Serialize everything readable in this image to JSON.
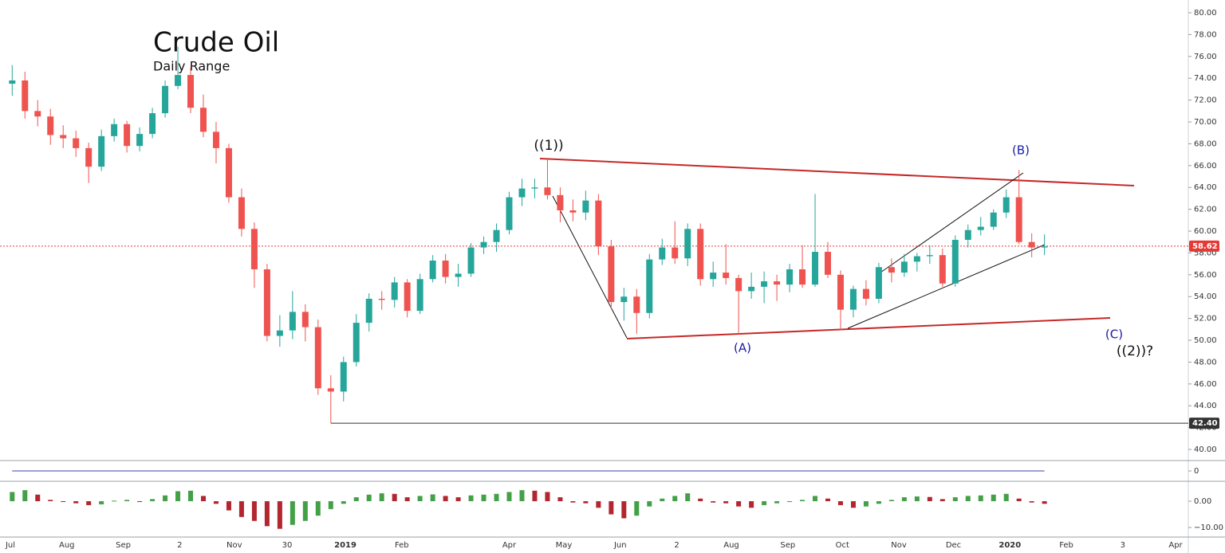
{
  "chart_data": [
    {
      "type": "candlestick",
      "title": "Crude Oil",
      "subtitle": "Daily Range",
      "x": [
        1,
        8,
        15,
        22,
        29,
        36,
        43,
        50,
        57,
        64,
        71,
        78,
        85,
        92,
        99,
        106,
        113,
        120,
        127,
        134,
        141,
        148,
        155,
        162,
        169,
        176,
        183,
        190,
        197,
        204,
        211,
        218,
        225,
        232,
        239,
        246,
        253,
        260,
        267,
        274,
        281,
        288,
        295,
        302,
        309,
        316,
        323,
        330,
        337,
        344,
        351,
        358,
        365,
        372,
        379,
        386,
        393,
        400,
        407,
        414,
        421,
        428,
        435,
        442,
        449,
        456,
        463,
        470,
        477,
        484,
        491,
        498,
        505,
        512,
        519,
        526,
        533,
        540,
        547,
        554,
        561,
        568
      ],
      "open": [
        73.5,
        73.8,
        71.0,
        70.5,
        68.8,
        68.5,
        67.6,
        65.9,
        68.7,
        69.8,
        67.8,
        68.9,
        70.8,
        73.3,
        74.3,
        71.3,
        69.1,
        67.6,
        63.1,
        60.2,
        56.5,
        50.4,
        50.9,
        52.6,
        51.2,
        45.6,
        45.3,
        48.0,
        51.6,
        53.8,
        53.7,
        55.3,
        52.7,
        55.6,
        57.3,
        55.8,
        56.1,
        58.5,
        59.0,
        60.1,
        63.1,
        63.9,
        64.0,
        63.3,
        61.9,
        61.7,
        62.8,
        58.6,
        53.5,
        54.0,
        52.5,
        57.4,
        58.5,
        57.5,
        60.2,
        55.6,
        56.2,
        55.7,
        54.5,
        54.9,
        55.4,
        55.1,
        56.5,
        55.1,
        58.1,
        56.0,
        52.8,
        54.7,
        53.8,
        56.7,
        56.2,
        57.2,
        57.7,
        57.8,
        55.2,
        59.2,
        60.1,
        60.4,
        61.7,
        63.1,
        59.0,
        58.5
      ],
      "high": [
        75.2,
        74.6,
        72.0,
        71.2,
        69.7,
        69.2,
        68.1,
        69.3,
        70.3,
        70.1,
        69.5,
        71.3,
        73.8,
        76.9,
        75.0,
        72.5,
        70.0,
        68.0,
        63.9,
        60.8,
        57.0,
        52.3,
        54.5,
        53.3,
        51.9,
        46.8,
        48.5,
        52.4,
        54.3,
        54.5,
        55.8,
        55.6,
        56.1,
        57.8,
        57.9,
        57.0,
        58.9,
        59.5,
        60.7,
        63.6,
        64.8,
        64.8,
        66.6,
        64.0,
        62.9,
        63.7,
        63.4,
        59.2,
        54.8,
        54.7,
        57.9,
        59.3,
        60.9,
        60.7,
        60.7,
        57.2,
        58.8,
        56.0,
        56.2,
        56.3,
        56.0,
        57.0,
        58.7,
        63.4,
        59.0,
        56.4,
        55.0,
        55.5,
        57.1,
        57.5,
        57.9,
        58.0,
        58.7,
        58.4,
        59.6,
        60.6,
        61.3,
        62.0,
        63.8,
        65.6,
        59.8,
        59.7
      ],
      "low": [
        72.4,
        70.3,
        69.6,
        67.9,
        67.6,
        66.8,
        64.4,
        65.5,
        68.2,
        67.2,
        67.3,
        68.5,
        70.4,
        73.0,
        70.8,
        68.6,
        66.2,
        62.6,
        59.5,
        54.8,
        49.9,
        49.4,
        50.1,
        49.9,
        45.0,
        42.4,
        44.4,
        47.6,
        50.8,
        52.8,
        53.0,
        52.1,
        52.4,
        55.3,
        55.2,
        54.9,
        55.8,
        57.9,
        58.1,
        59.7,
        62.3,
        63.0,
        62.9,
        60.8,
        60.9,
        61.0,
        57.8,
        52.9,
        51.8,
        50.6,
        52.0,
        56.9,
        57.0,
        56.8,
        55.0,
        54.9,
        55.1,
        50.5,
        53.8,
        53.4,
        53.6,
        54.4,
        54.8,
        54.9,
        55.7,
        50.9,
        52.1,
        53.2,
        53.4,
        55.3,
        55.8,
        56.3,
        57.0,
        54.9,
        54.9,
        58.5,
        59.6,
        60.1,
        61.2,
        58.8,
        57.6,
        57.8
      ],
      "close": [
        73.8,
        71.0,
        70.5,
        68.8,
        68.5,
        67.6,
        65.9,
        68.7,
        69.8,
        67.8,
        68.9,
        70.8,
        73.3,
        74.3,
        71.3,
        69.1,
        67.6,
        63.1,
        60.2,
        56.5,
        50.4,
        50.9,
        52.6,
        51.2,
        45.6,
        45.3,
        48.0,
        51.6,
        53.8,
        53.7,
        55.3,
        52.7,
        55.6,
        57.3,
        55.8,
        56.1,
        58.5,
        59.0,
        60.1,
        63.1,
        63.9,
        64.0,
        63.3,
        61.9,
        61.7,
        62.8,
        58.6,
        53.5,
        54.0,
        52.5,
        57.4,
        58.5,
        57.5,
        60.2,
        55.6,
        56.2,
        55.7,
        54.5,
        54.9,
        55.4,
        55.1,
        56.5,
        55.1,
        58.1,
        56.0,
        52.8,
        54.7,
        53.8,
        56.7,
        56.2,
        57.2,
        57.7,
        57.8,
        55.2,
        59.2,
        60.1,
        60.4,
        61.7,
        63.1,
        59.0,
        58.5,
        58.6
      ],
      "up_color": "#26a69a",
      "down_color": "#ef5350",
      "xlim": [
        -5.7,
        647
      ],
      "xticks": [
        {
          "value": 0,
          "label": "Jul"
        },
        {
          "value": 31,
          "label": "Aug"
        },
        {
          "value": 62,
          "label": "Sep"
        },
        {
          "value": 93,
          "label": "2"
        },
        {
          "value": 123,
          "label": "Nov"
        },
        {
          "value": 152,
          "label": "30"
        },
        {
          "value": 184,
          "label": "2019"
        },
        {
          "value": 215,
          "label": "Feb"
        },
        {
          "value": 274,
          "label": "Apr"
        },
        {
          "value": 304,
          "label": "May"
        },
        {
          "value": 335,
          "label": "Jun"
        },
        {
          "value": 366,
          "label": "2"
        },
        {
          "value": 396,
          "label": "Aug"
        },
        {
          "value": 427,
          "label": "Sep"
        },
        {
          "value": 457,
          "label": "Oct"
        },
        {
          "value": 488,
          "label": "Nov"
        },
        {
          "value": 518,
          "label": "Dec"
        },
        {
          "value": 549,
          "label": "2020"
        },
        {
          "value": 580,
          "label": "Feb"
        },
        {
          "value": 611,
          "label": "3"
        },
        {
          "value": 640,
          "label": "Apr"
        }
      ],
      "ylim": [
        38.98,
        81.17
      ],
      "yticks": [
        {
          "value": 40,
          "label": "40.00"
        },
        {
          "value": 42,
          "label": "42.00"
        },
        {
          "value": 44,
          "label": "44.00"
        },
        {
          "value": 46,
          "label": "46.00"
        },
        {
          "value": 48,
          "label": "48.00"
        },
        {
          "value": 50,
          "label": "50.00"
        },
        {
          "value": 52,
          "label": "52.00"
        },
        {
          "value": 54,
          "label": "54.00"
        },
        {
          "value": 56,
          "label": "56.00"
        },
        {
          "value": 58,
          "label": "58.00"
        },
        {
          "value": 60,
          "label": "60.00"
        },
        {
          "value": 62,
          "label": "62.00"
        },
        {
          "value": 64,
          "label": "64.00"
        },
        {
          "value": 66,
          "label": "66.00"
        },
        {
          "value": 68,
          "label": "68.00"
        },
        {
          "value": 70,
          "label": "70.00"
        },
        {
          "value": 72,
          "label": "72.00"
        },
        {
          "value": 74,
          "label": "74.00"
        },
        {
          "value": 76,
          "label": "76.00"
        },
        {
          "value": 78,
          "label": "78.00"
        },
        {
          "value": 80,
          "label": "80.00"
        }
      ],
      "price_lines": [
        {
          "value": 58.62,
          "color": "#e53935"
        },
        {
          "value": 42.4,
          "label": "42.40",
          "color": "#333333"
        }
      ],
      "annotations": [
        {
          "text": "((1))",
          "color": "#111111"
        },
        {
          "text": "(B)",
          "color": "#1a1aa8"
        },
        {
          "text": "(A)",
          "color": "#1a1aa8"
        },
        {
          "text": "(C)",
          "color": "#1a1aa8"
        },
        {
          "text": "((2))?",
          "color": "#111111"
        }
      ]
    },
    {
      "type": "line",
      "x": [
        1,
        568
      ],
      "values": [
        0,
        0
      ],
      "color": "#3f3fb0",
      "ylim": [
        -1,
        1
      ],
      "yticks": [
        0
      ]
    },
    {
      "type": "bar",
      "x": [
        1,
        8,
        15,
        22,
        29,
        36,
        43,
        50,
        57,
        64,
        71,
        78,
        85,
        92,
        99,
        106,
        113,
        120,
        127,
        134,
        141,
        148,
        155,
        162,
        169,
        176,
        183,
        190,
        197,
        204,
        211,
        218,
        225,
        232,
        239,
        246,
        253,
        260,
        267,
        274,
        281,
        288,
        295,
        302,
        309,
        316,
        323,
        330,
        337,
        344,
        351,
        358,
        365,
        372,
        379,
        386,
        393,
        400,
        407,
        414,
        421,
        428,
        435,
        442,
        449,
        456,
        463,
        470,
        477,
        484,
        491,
        498,
        505,
        512,
        519,
        526,
        533,
        540,
        547,
        554,
        561,
        568
      ],
      "values": [
        3.5,
        4.2,
        2.5,
        0.5,
        -0.3,
        -0.8,
        -1.5,
        -1.2,
        0.2,
        0.5,
        -0.2,
        0.8,
        2.2,
        3.8,
        4.0,
        2.0,
        -1.0,
        -3.5,
        -6.0,
        -7.5,
        -9.5,
        -10.5,
        -9.0,
        -7.5,
        -5.5,
        -3.0,
        -1.0,
        1.5,
        2.5,
        3.0,
        2.8,
        1.5,
        2.0,
        2.6,
        2.0,
        1.5,
        2.2,
        2.5,
        2.8,
        3.5,
        4.2,
        4.0,
        3.5,
        1.5,
        -0.5,
        -0.8,
        -2.5,
        -5.0,
        -6.5,
        -5.5,
        -2.0,
        1.0,
        2.0,
        3.0,
        1.0,
        -0.5,
        -0.8,
        -2.0,
        -2.5,
        -1.5,
        -0.8,
        -0.3,
        0.5,
        2.0,
        1.0,
        -1.5,
        -2.5,
        -2.0,
        -1.0,
        0.5,
        1.5,
        1.8,
        1.6,
        0.8,
        1.5,
        2.0,
        2.2,
        2.5,
        2.8,
        1.0,
        -0.5,
        -1.0
      ],
      "up_color": "#43a047",
      "down_color": "#b3262f",
      "ylim": [
        -13.64,
        7.58
      ],
      "yticks": [
        {
          "value": 0,
          "label": "0.00"
        },
        {
          "value": -10,
          "label": "−10.00"
        }
      ]
    }
  ]
}
